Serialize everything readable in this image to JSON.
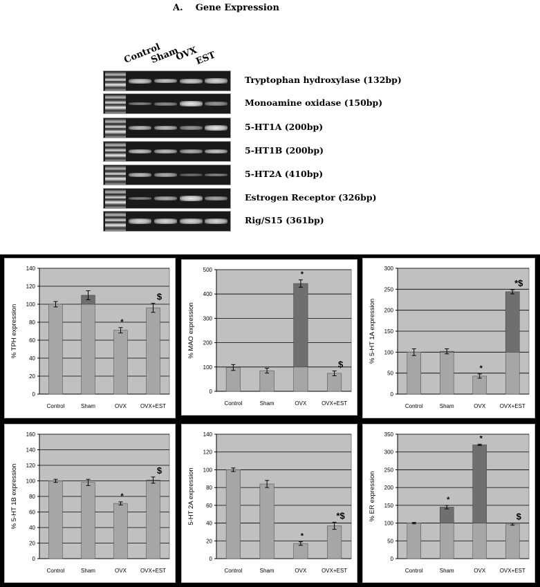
{
  "gel": {
    "title": "A.    Gene Expression",
    "lanes": [
      "Control",
      "Sham",
      "OVX",
      "EST"
    ],
    "rows": [
      {
        "label": "Tryptophan hydroxylase (132bp)",
        "intensity": [
          0.8,
          0.75,
          0.8,
          0.85
        ]
      },
      {
        "label": "Monoamine oxidase (150bp)",
        "intensity": [
          0.35,
          0.4,
          0.95,
          0.45
        ]
      },
      {
        "label": "5-HT1A (200bp)",
        "intensity": [
          0.7,
          0.7,
          0.45,
          0.95
        ]
      },
      {
        "label": "5-HT1B (200bp)",
        "intensity": [
          0.75,
          0.7,
          0.6,
          0.75
        ]
      },
      {
        "label": "5-HT2A (410bp)",
        "intensity": [
          0.7,
          0.6,
          0.2,
          0.35
        ]
      },
      {
        "label": "Estrogen Receptor (326bp)",
        "intensity": [
          0.35,
          0.6,
          0.95,
          0.55
        ]
      },
      {
        "label": "Rig/S15 (361bp)",
        "intensity": [
          0.85,
          0.85,
          0.85,
          0.85
        ]
      }
    ]
  },
  "chart_data": [
    {
      "type": "bar",
      "categories": [
        "Control",
        "Sham",
        "OVX",
        "OVX+EST"
      ],
      "values": [
        100,
        110,
        71,
        96
      ],
      "errors": [
        3,
        5,
        3,
        5
      ],
      "annotations": [
        "",
        "",
        "*",
        "$"
      ],
      "ylabel": "% TPH expression",
      "ylim": [
        0,
        140
      ],
      "yticks": [
        0,
        20,
        40,
        60,
        80,
        100,
        120,
        140
      ],
      "grid": true
    },
    {
      "type": "bar",
      "categories": [
        "Control",
        "Sham",
        "OVX",
        "OVX+EST"
      ],
      "values": [
        98,
        85,
        443,
        74
      ],
      "errors": [
        12,
        10,
        15,
        10
      ],
      "annotations": [
        "",
        "",
        "*",
        "$"
      ],
      "ylabel": "% MAO expression",
      "ylim": [
        0,
        500
      ],
      "yticks": [
        0,
        100,
        200,
        300,
        400,
        500
      ],
      "grid": true
    },
    {
      "type": "bar",
      "categories": [
        "Control",
        "Sham",
        "OVX",
        "OVX+EST"
      ],
      "values": [
        100,
        102,
        43,
        244
      ],
      "errors": [
        8,
        6,
        5,
        5
      ],
      "annotations": [
        "",
        "",
        "*",
        "*$"
      ],
      "ylabel": "% 5-HT 1A expression",
      "ylim": [
        0,
        300
      ],
      "yticks": [
        0,
        50,
        100,
        150,
        200,
        250,
        300
      ],
      "grid": true
    },
    {
      "type": "bar",
      "categories": [
        "Control",
        "Sham",
        "OVX",
        "OVX+EST"
      ],
      "values": [
        100,
        98,
        71,
        101
      ],
      "errors": [
        2,
        4,
        2,
        4
      ],
      "annotations": [
        "",
        "",
        "*",
        "$"
      ],
      "ylabel": "% 5-HT 1B expression",
      "ylim": [
        0,
        160
      ],
      "yticks": [
        0,
        20,
        40,
        60,
        80,
        100,
        120,
        140,
        160
      ],
      "grid": true
    },
    {
      "type": "bar",
      "categories": [
        "Control",
        "Sham",
        "OVX",
        "OVX+EST"
      ],
      "values": [
        100,
        84,
        17,
        37
      ],
      "errors": [
        2,
        4,
        2,
        4
      ],
      "annotations": [
        "",
        "",
        "*",
        "*$"
      ],
      "ylabel": "5-HT 2A expression",
      "ylim": [
        0,
        140
      ],
      "yticks": [
        0,
        20,
        40,
        60,
        80,
        100,
        120,
        140
      ],
      "grid": true
    },
    {
      "type": "bar",
      "categories": [
        "Control",
        "Sham",
        "OVX",
        "OVX+EST"
      ],
      "values": [
        100,
        145,
        320,
        97
      ],
      "errors": [
        2,
        5,
        2,
        3
      ],
      "annotations": [
        "",
        "*",
        "*",
        "$"
      ],
      "ylabel": "% ER expression",
      "ylim": [
        0,
        350
      ],
      "yticks": [
        0,
        50,
        100,
        150,
        200,
        250,
        300,
        350
      ],
      "grid": true
    }
  ],
  "colors": {
    "plot_bg": "#c0c0c0",
    "bar_light": "#a6a6a6",
    "bar_dark": "#6f6f6f",
    "gridline": "#000000",
    "frame": "#000000"
  }
}
